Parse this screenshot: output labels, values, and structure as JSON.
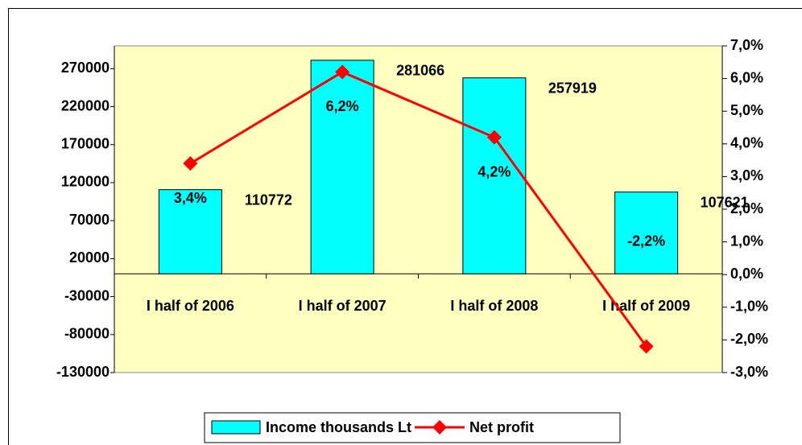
{
  "chart_data": {
    "type": "bar",
    "categories": [
      "I half of 2006",
      "I half of 2007",
      "I half of 2008",
      "I half of 2009"
    ],
    "series": [
      {
        "name": "Income thousands Lt",
        "type": "bar",
        "color": "#00FFFF",
        "values": [
          110772,
          281066,
          257919,
          107621
        ]
      },
      {
        "name": "Net profit",
        "type": "line",
        "axis": "y2",
        "color": "#FF0000",
        "values": [
          3.4,
          6.2,
          4.2,
          -2.2
        ],
        "value_labels": [
          "3,4%",
          "6,2%",
          "4,2%",
          "-2,2%"
        ]
      }
    ],
    "ylim": [
      -130000,
      300000
    ],
    "yticks": [
      -130000,
      -80000,
      -30000,
      20000,
      70000,
      120000,
      170000,
      220000,
      270000
    ],
    "y2lim": [
      -3,
      7
    ],
    "y2ticks": [
      {
        "value": -3,
        "label": "-3,0%"
      },
      {
        "value": -2,
        "label": "-2,0%"
      },
      {
        "value": -1,
        "label": "-1,0%"
      },
      {
        "value": 0,
        "label": "0,0%"
      },
      {
        "value": 1,
        "label": "1,0%"
      },
      {
        "value": 2,
        "label": "2,0%"
      },
      {
        "value": 3,
        "label": "3,0%"
      },
      {
        "value": 4,
        "label": "4,0%"
      },
      {
        "value": 5,
        "label": "5,0%"
      },
      {
        "value": 6,
        "label": "6,0%"
      },
      {
        "value": 7,
        "label": "7,0%"
      }
    ],
    "plot_background": "#FFFFC0",
    "legend": "bottom"
  }
}
